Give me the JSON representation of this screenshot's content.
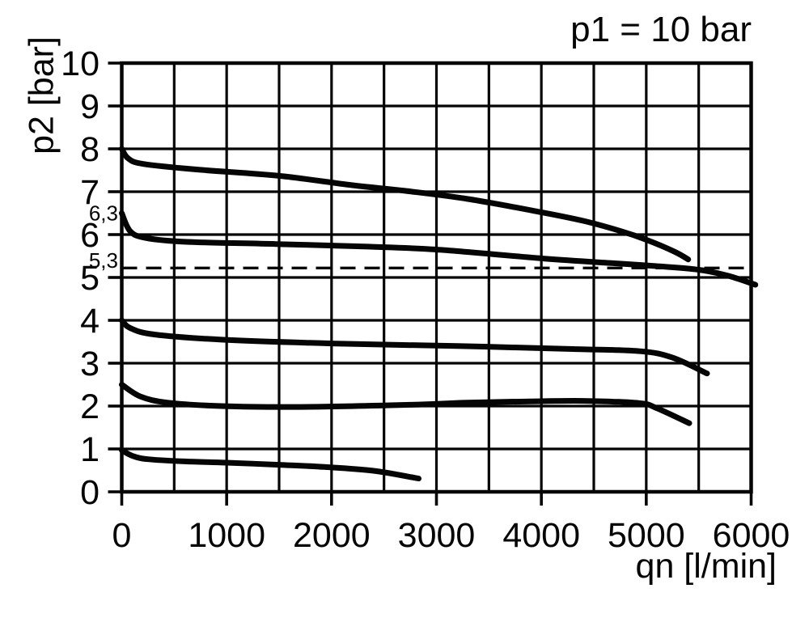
{
  "colors": {
    "ink": "#050505",
    "background": "#ffffff"
  },
  "chart_data": {
    "type": "line",
    "title": "p1 = 10 bar",
    "xlabel": "qn [l/min]",
    "ylabel": "p2 [bar]",
    "xlim": [
      0,
      6000
    ],
    "ylim": [
      0,
      10
    ],
    "grid": true,
    "x_grid_step": 500,
    "y_grid_step": 1,
    "x_ticks": [
      0,
      1000,
      2000,
      3000,
      4000,
      5000,
      6000
    ],
    "y_ticks": [
      0,
      1,
      2,
      3,
      4,
      5,
      6,
      7,
      8,
      9,
      10
    ],
    "secondary_y_labels": [
      {
        "text": "6,3",
        "value": 6.5
      },
      {
        "text": "5,3",
        "value": 5.4
      }
    ],
    "reference_line": {
      "style": "dashed",
      "p2": 5.22
    },
    "legend": "none",
    "series": [
      {
        "name": "outlet-pressure-set-8-bar",
        "points": [
          [
            0,
            8.0
          ],
          [
            60,
            7.78
          ],
          [
            200,
            7.65
          ],
          [
            700,
            7.52
          ],
          [
            1500,
            7.37
          ],
          [
            2200,
            7.15
          ],
          [
            2700,
            7.02
          ],
          [
            3300,
            6.83
          ],
          [
            4000,
            6.52
          ],
          [
            4400,
            6.32
          ],
          [
            4760,
            6.08
          ],
          [
            5000,
            5.88
          ],
          [
            5270,
            5.6
          ],
          [
            5400,
            5.42
          ]
        ]
      },
      {
        "name": "outlet-pressure-set-6-3-bar",
        "points": [
          [
            0,
            6.5
          ],
          [
            80,
            6.08
          ],
          [
            230,
            5.92
          ],
          [
            620,
            5.83
          ],
          [
            1470,
            5.78
          ],
          [
            2310,
            5.72
          ],
          [
            3000,
            5.65
          ],
          [
            4030,
            5.44
          ],
          [
            4700,
            5.33
          ],
          [
            5070,
            5.27
          ],
          [
            5500,
            5.18
          ],
          [
            5780,
            5.04
          ],
          [
            6040,
            4.83
          ]
        ]
      },
      {
        "name": "outlet-pressure-set-4-bar",
        "points": [
          [
            0,
            4.0
          ],
          [
            80,
            3.82
          ],
          [
            310,
            3.67
          ],
          [
            950,
            3.55
          ],
          [
            2000,
            3.46
          ],
          [
            3200,
            3.4
          ],
          [
            4300,
            3.33
          ],
          [
            4940,
            3.28
          ],
          [
            5250,
            3.13
          ],
          [
            5580,
            2.76
          ]
        ]
      },
      {
        "name": "outlet-pressure-set-2-5-bar",
        "points": [
          [
            0,
            2.5
          ],
          [
            180,
            2.22
          ],
          [
            440,
            2.08
          ],
          [
            950,
            2.0
          ],
          [
            1700,
            1.98
          ],
          [
            2750,
            2.03
          ],
          [
            3300,
            2.08
          ],
          [
            3900,
            2.11
          ],
          [
            4400,
            2.12
          ],
          [
            4930,
            2.07
          ],
          [
            5100,
            1.95
          ],
          [
            5410,
            1.6
          ]
        ]
      },
      {
        "name": "outlet-pressure-set-1-bar",
        "points": [
          [
            0,
            0.97
          ],
          [
            100,
            0.84
          ],
          [
            250,
            0.76
          ],
          [
            600,
            0.71
          ],
          [
            1000,
            0.68
          ],
          [
            1500,
            0.63
          ],
          [
            1930,
            0.58
          ],
          [
            2400,
            0.49
          ],
          [
            2830,
            0.31
          ]
        ]
      }
    ]
  }
}
